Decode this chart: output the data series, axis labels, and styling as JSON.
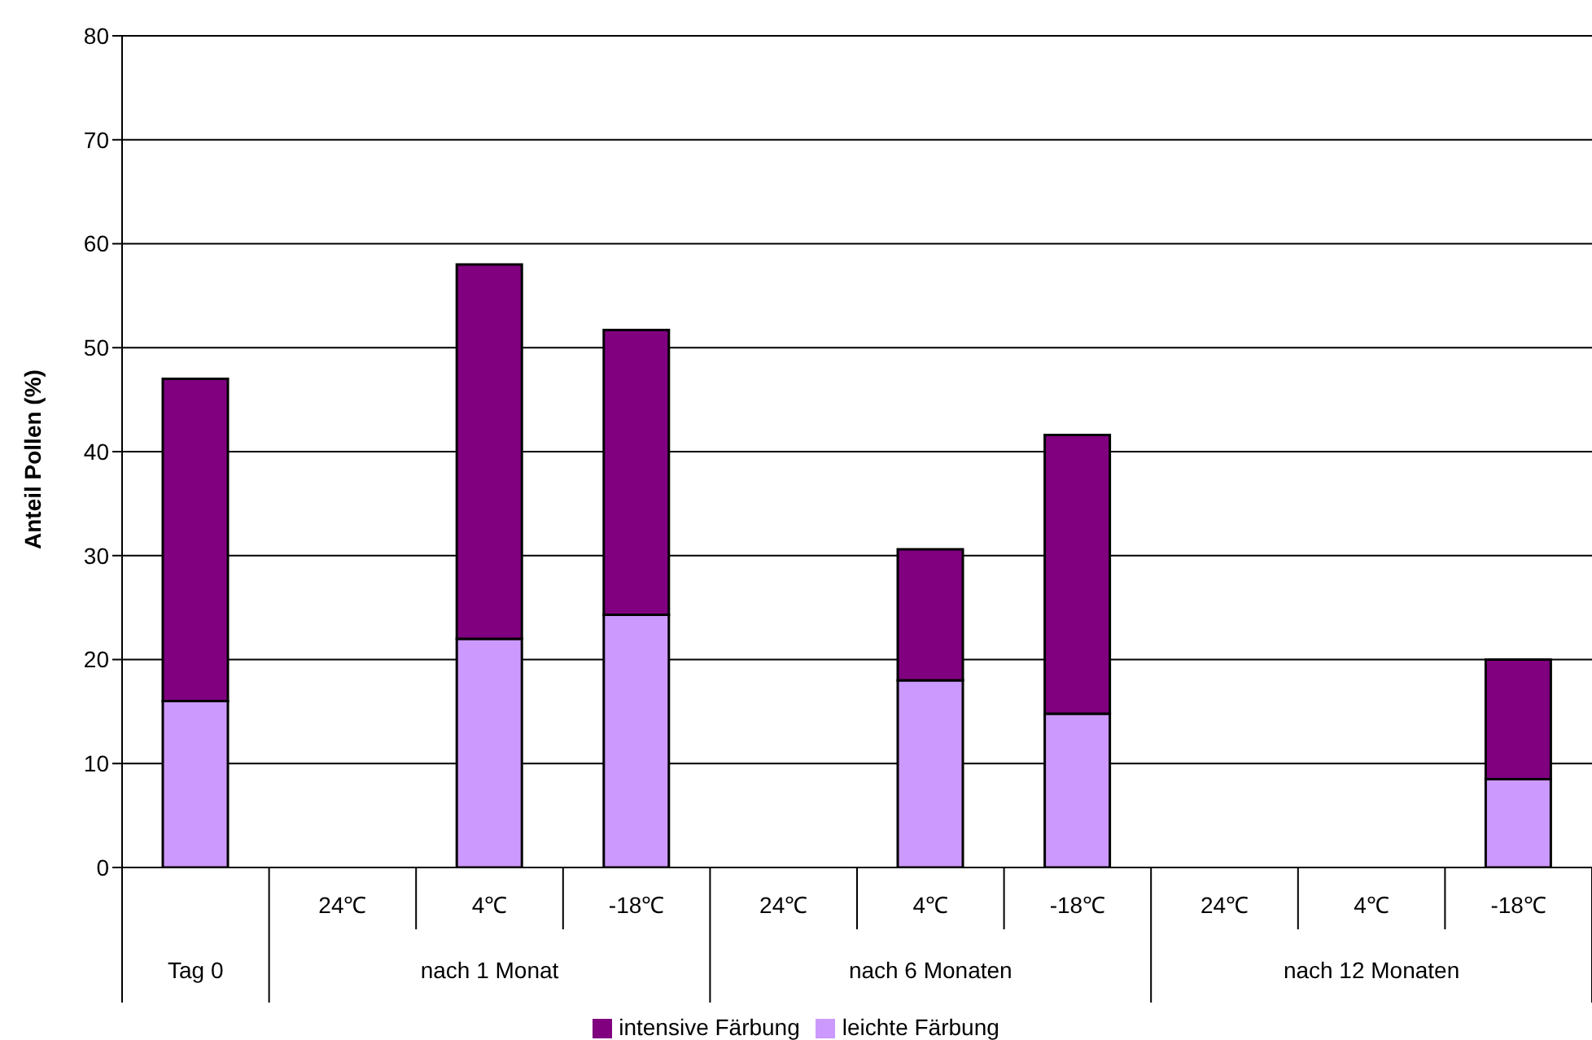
{
  "chart_data": {
    "type": "bar",
    "stacked": true,
    "ylabel": "Anteil Pollen (%)",
    "categories": [
      null,
      "24℃",
      "4℃",
      "-18℃",
      "24℃",
      "4℃",
      "-18℃",
      "24℃",
      "4℃",
      "-18℃"
    ],
    "annotations": [
      "Tag 0",
      "nach 1 Monat",
      "nach 6 Monaten",
      "nach 12 Monaten"
    ],
    "series": [
      {
        "name": "leichte Färbung",
        "color": "#cc99ff",
        "values": [
          16,
          null,
          22,
          24.3,
          null,
          18,
          14.8,
          null,
          null,
          8.5
        ]
      },
      {
        "name": "intensive Färbung",
        "color": "#800080",
        "values": [
          31,
          null,
          36,
          27.4,
          null,
          12.6,
          26.8,
          null,
          null,
          11.5
        ]
      }
    ],
    "ylim": [
      0,
      80
    ],
    "yticks": [
      0,
      10,
      20,
      30,
      40,
      50,
      60,
      70,
      80
    ],
    "grid": "y",
    "legend": "bottom"
  }
}
